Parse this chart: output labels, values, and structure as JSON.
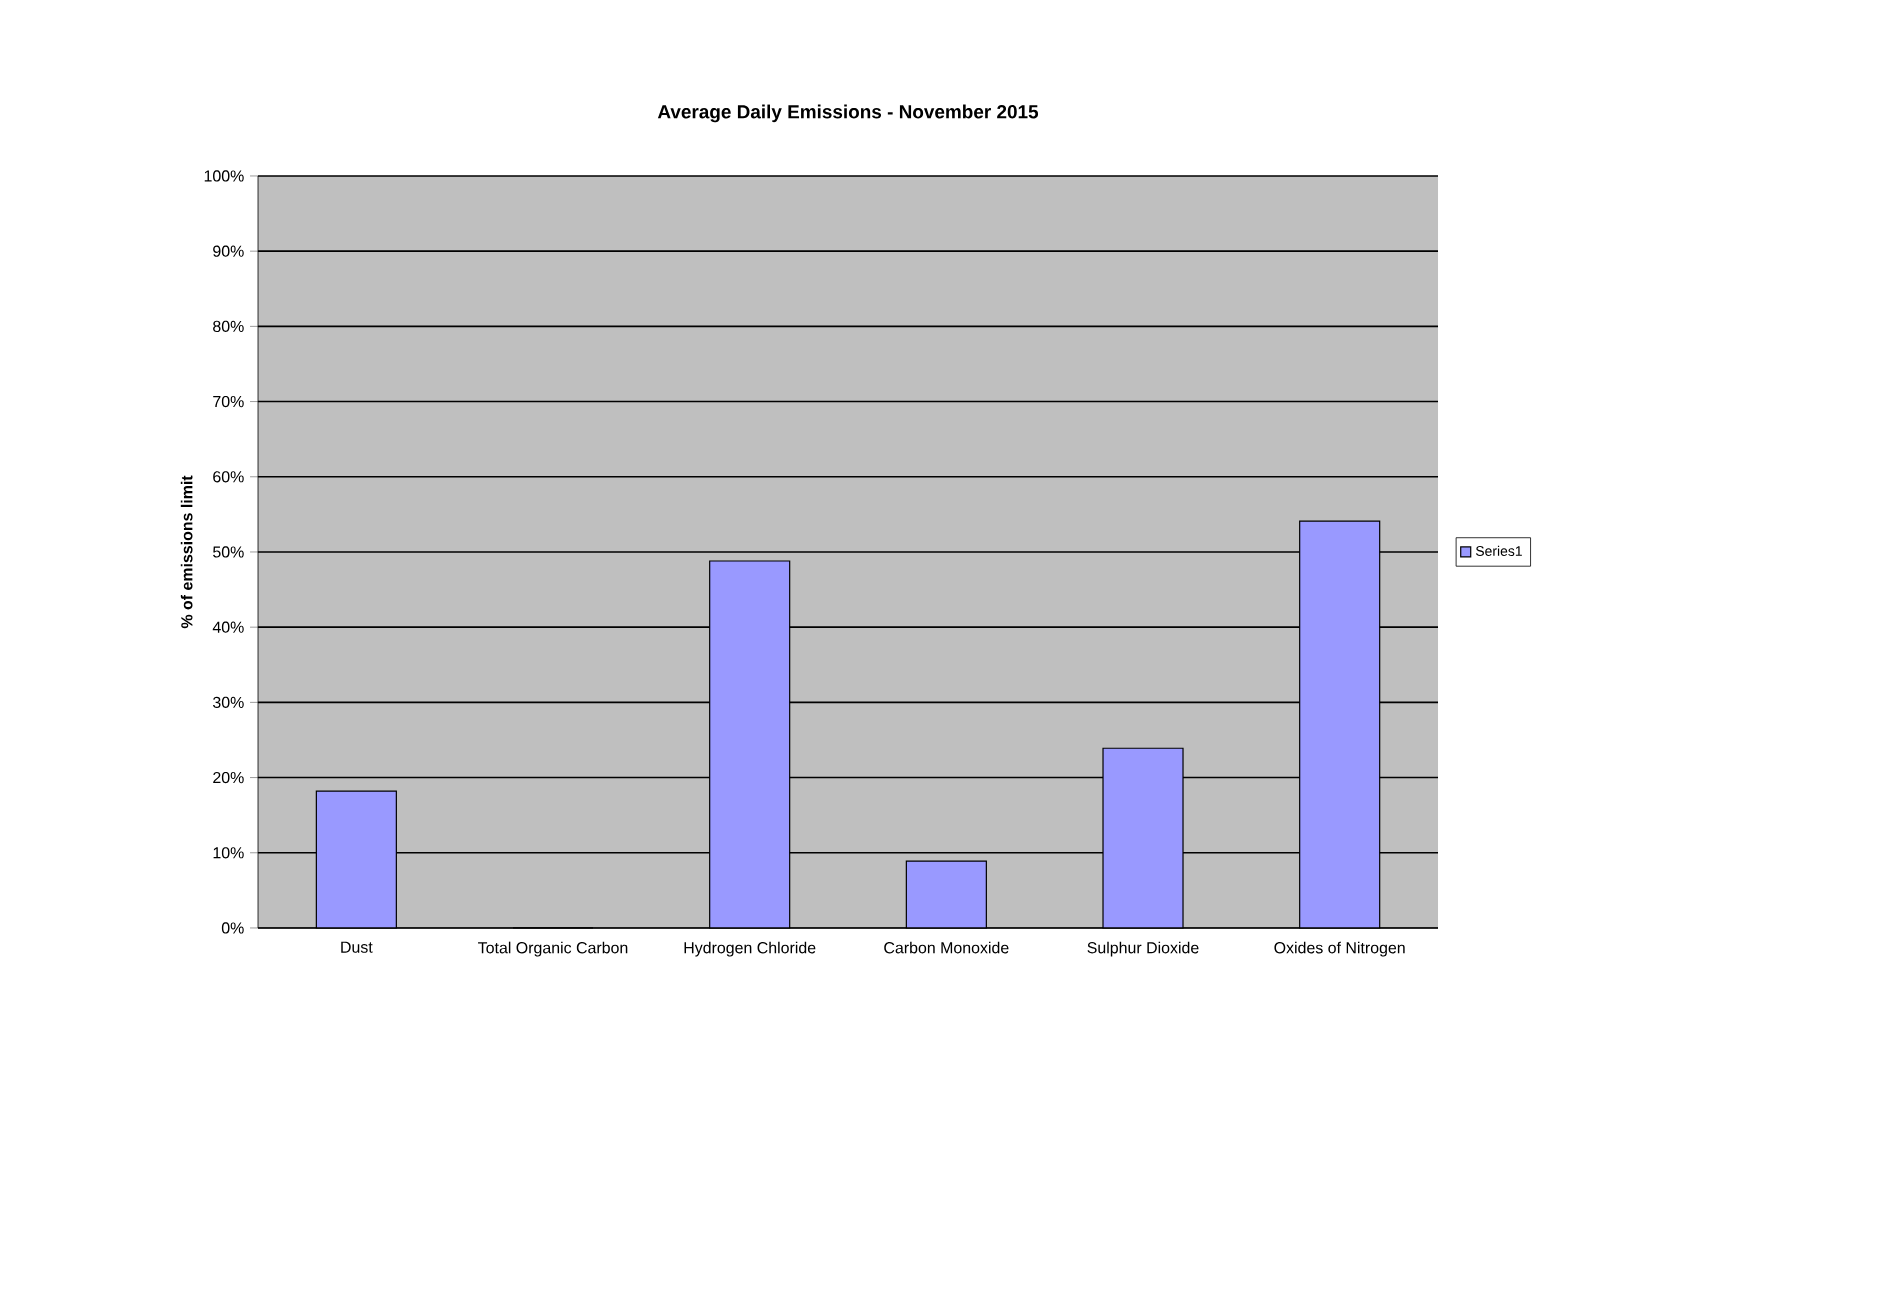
{
  "chart_data": {
    "type": "bar",
    "title": "Average Daily Emissions - November 2015",
    "ylabel": "% of emissions limit",
    "categories": [
      "Dust",
      "Total Organic Carbon",
      "Hydrogen Chloride",
      "Carbon Monoxide",
      "Sulphur Dioxide",
      "Oxides of Nitrogen"
    ],
    "series": [
      {
        "name": "Series1",
        "color": "#9999ff",
        "values": [
          18.2,
          0,
          48.8,
          8.9,
          23.9,
          54.1
        ]
      }
    ],
    "ylim": [
      0,
      100
    ],
    "yticks": [
      {
        "value": 0,
        "label": "0%"
      },
      {
        "value": 10,
        "label": "10%"
      },
      {
        "value": 20,
        "label": "20%"
      },
      {
        "value": 30,
        "label": "30%"
      },
      {
        "value": 40,
        "label": "40%"
      },
      {
        "value": 50,
        "label": "50%"
      },
      {
        "value": 60,
        "label": "60%"
      },
      {
        "value": 70,
        "label": "70%"
      },
      {
        "value": 80,
        "label": "80%"
      },
      {
        "value": 90,
        "label": "90%"
      },
      {
        "value": 100,
        "label": "100%"
      }
    ],
    "grid": "y",
    "legend": "right"
  }
}
